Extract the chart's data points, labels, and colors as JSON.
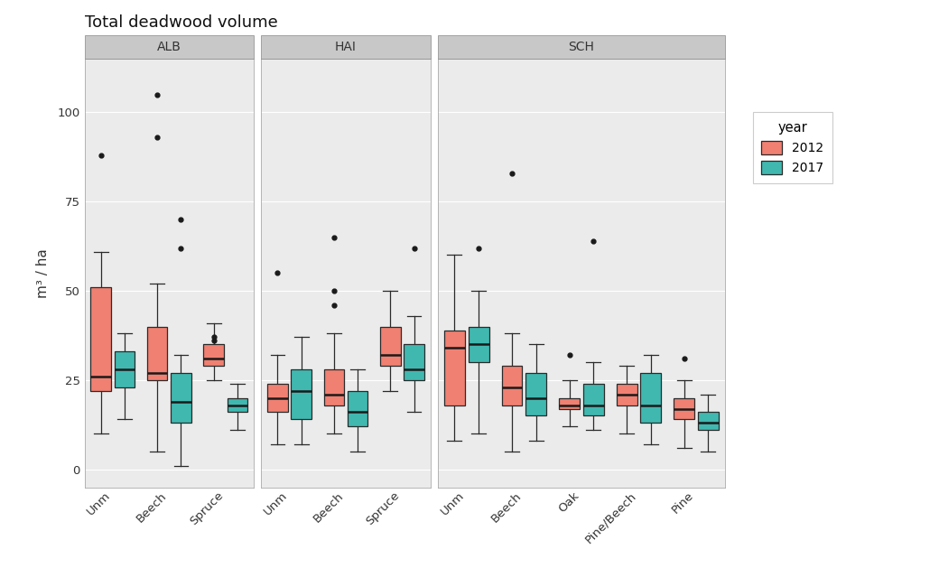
{
  "title": "Total deadwood volume",
  "ylabel": "m³ / ha",
  "panels": [
    "ALB",
    "HAI",
    "SCH"
  ],
  "color_2012": "#F08072",
  "color_2017": "#40B8B0",
  "background_color": "#FFFFFF",
  "panel_bg": "#EBEBEB",
  "grid_color": "#FFFFFF",
  "ylim": [
    -5,
    115
  ],
  "yticks": [
    0,
    25,
    50,
    75,
    100
  ],
  "legend_title": "year",
  "legend_labels": [
    "2012",
    "2017"
  ],
  "ALB": {
    "categories": [
      "Unm",
      "Beech",
      "Spruce"
    ],
    "2012": {
      "Unm": {
        "q1": 22,
        "median": 26,
        "q3": 51,
        "whislo": 10,
        "whishi": 61,
        "fliers": [
          88
        ]
      },
      "Beech": {
        "q1": 25,
        "median": 27,
        "q3": 40,
        "whislo": 5,
        "whishi": 52,
        "fliers": [
          93,
          105
        ]
      },
      "Spruce": {
        "q1": 29,
        "median": 31,
        "q3": 35,
        "whislo": 25,
        "whishi": 41,
        "fliers": [
          36,
          37
        ]
      }
    },
    "2017": {
      "Unm": {
        "q1": 23,
        "median": 28,
        "q3": 33,
        "whislo": 14,
        "whishi": 38,
        "fliers": []
      },
      "Beech": {
        "q1": 13,
        "median": 19,
        "q3": 27,
        "whislo": 1,
        "whishi": 32,
        "fliers": [
          62,
          70
        ]
      },
      "Spruce": {
        "q1": 16,
        "median": 18,
        "q3": 20,
        "whislo": 11,
        "whishi": 24,
        "fliers": []
      }
    }
  },
  "HAI": {
    "categories": [
      "Unm",
      "Beech",
      "Spruce"
    ],
    "2012": {
      "Unm": {
        "q1": 16,
        "median": 20,
        "q3": 24,
        "whislo": 7,
        "whishi": 32,
        "fliers": [
          55
        ]
      },
      "Beech": {
        "q1": 18,
        "median": 21,
        "q3": 28,
        "whislo": 10,
        "whishi": 38,
        "fliers": [
          46,
          50,
          65
        ]
      },
      "Spruce": {
        "q1": 29,
        "median": 32,
        "q3": 40,
        "whislo": 22,
        "whishi": 50,
        "fliers": []
      }
    },
    "2017": {
      "Unm": {
        "q1": 14,
        "median": 22,
        "q3": 28,
        "whislo": 7,
        "whishi": 37,
        "fliers": []
      },
      "Beech": {
        "q1": 12,
        "median": 16,
        "q3": 22,
        "whislo": 5,
        "whishi": 28,
        "fliers": []
      },
      "Spruce": {
        "q1": 25,
        "median": 28,
        "q3": 35,
        "whislo": 16,
        "whishi": 43,
        "fliers": [
          62
        ]
      }
    }
  },
  "SCH": {
    "categories": [
      "Unm",
      "Beech",
      "Oak",
      "Pine/Beech",
      "Pine"
    ],
    "2012": {
      "Unm": {
        "q1": 18,
        "median": 34,
        "q3": 39,
        "whislo": 8,
        "whishi": 60,
        "fliers": []
      },
      "Beech": {
        "q1": 18,
        "median": 23,
        "q3": 29,
        "whislo": 5,
        "whishi": 38,
        "fliers": [
          83
        ]
      },
      "Oak": {
        "q1": 17,
        "median": 18,
        "q3": 20,
        "whislo": 12,
        "whishi": 25,
        "fliers": [
          32
        ]
      },
      "Pine/Beech": {
        "q1": 18,
        "median": 21,
        "q3": 24,
        "whislo": 10,
        "whishi": 29,
        "fliers": []
      },
      "Pine": {
        "q1": 14,
        "median": 17,
        "q3": 20,
        "whislo": 6,
        "whishi": 25,
        "fliers": [
          31
        ]
      }
    },
    "2017": {
      "Unm": {
        "q1": 30,
        "median": 35,
        "q3": 40,
        "whislo": 10,
        "whishi": 50,
        "fliers": [
          62
        ]
      },
      "Beech": {
        "q1": 15,
        "median": 20,
        "q3": 27,
        "whislo": 8,
        "whishi": 35,
        "fliers": []
      },
      "Oak": {
        "q1": 15,
        "median": 18,
        "q3": 24,
        "whislo": 11,
        "whishi": 30,
        "fliers": [
          64
        ]
      },
      "Pine/Beech": {
        "q1": 13,
        "median": 18,
        "q3": 27,
        "whislo": 7,
        "whishi": 32,
        "fliers": []
      },
      "Pine": {
        "q1": 11,
        "median": 13,
        "q3": 16,
        "whislo": 5,
        "whishi": 21,
        "fliers": []
      }
    }
  }
}
